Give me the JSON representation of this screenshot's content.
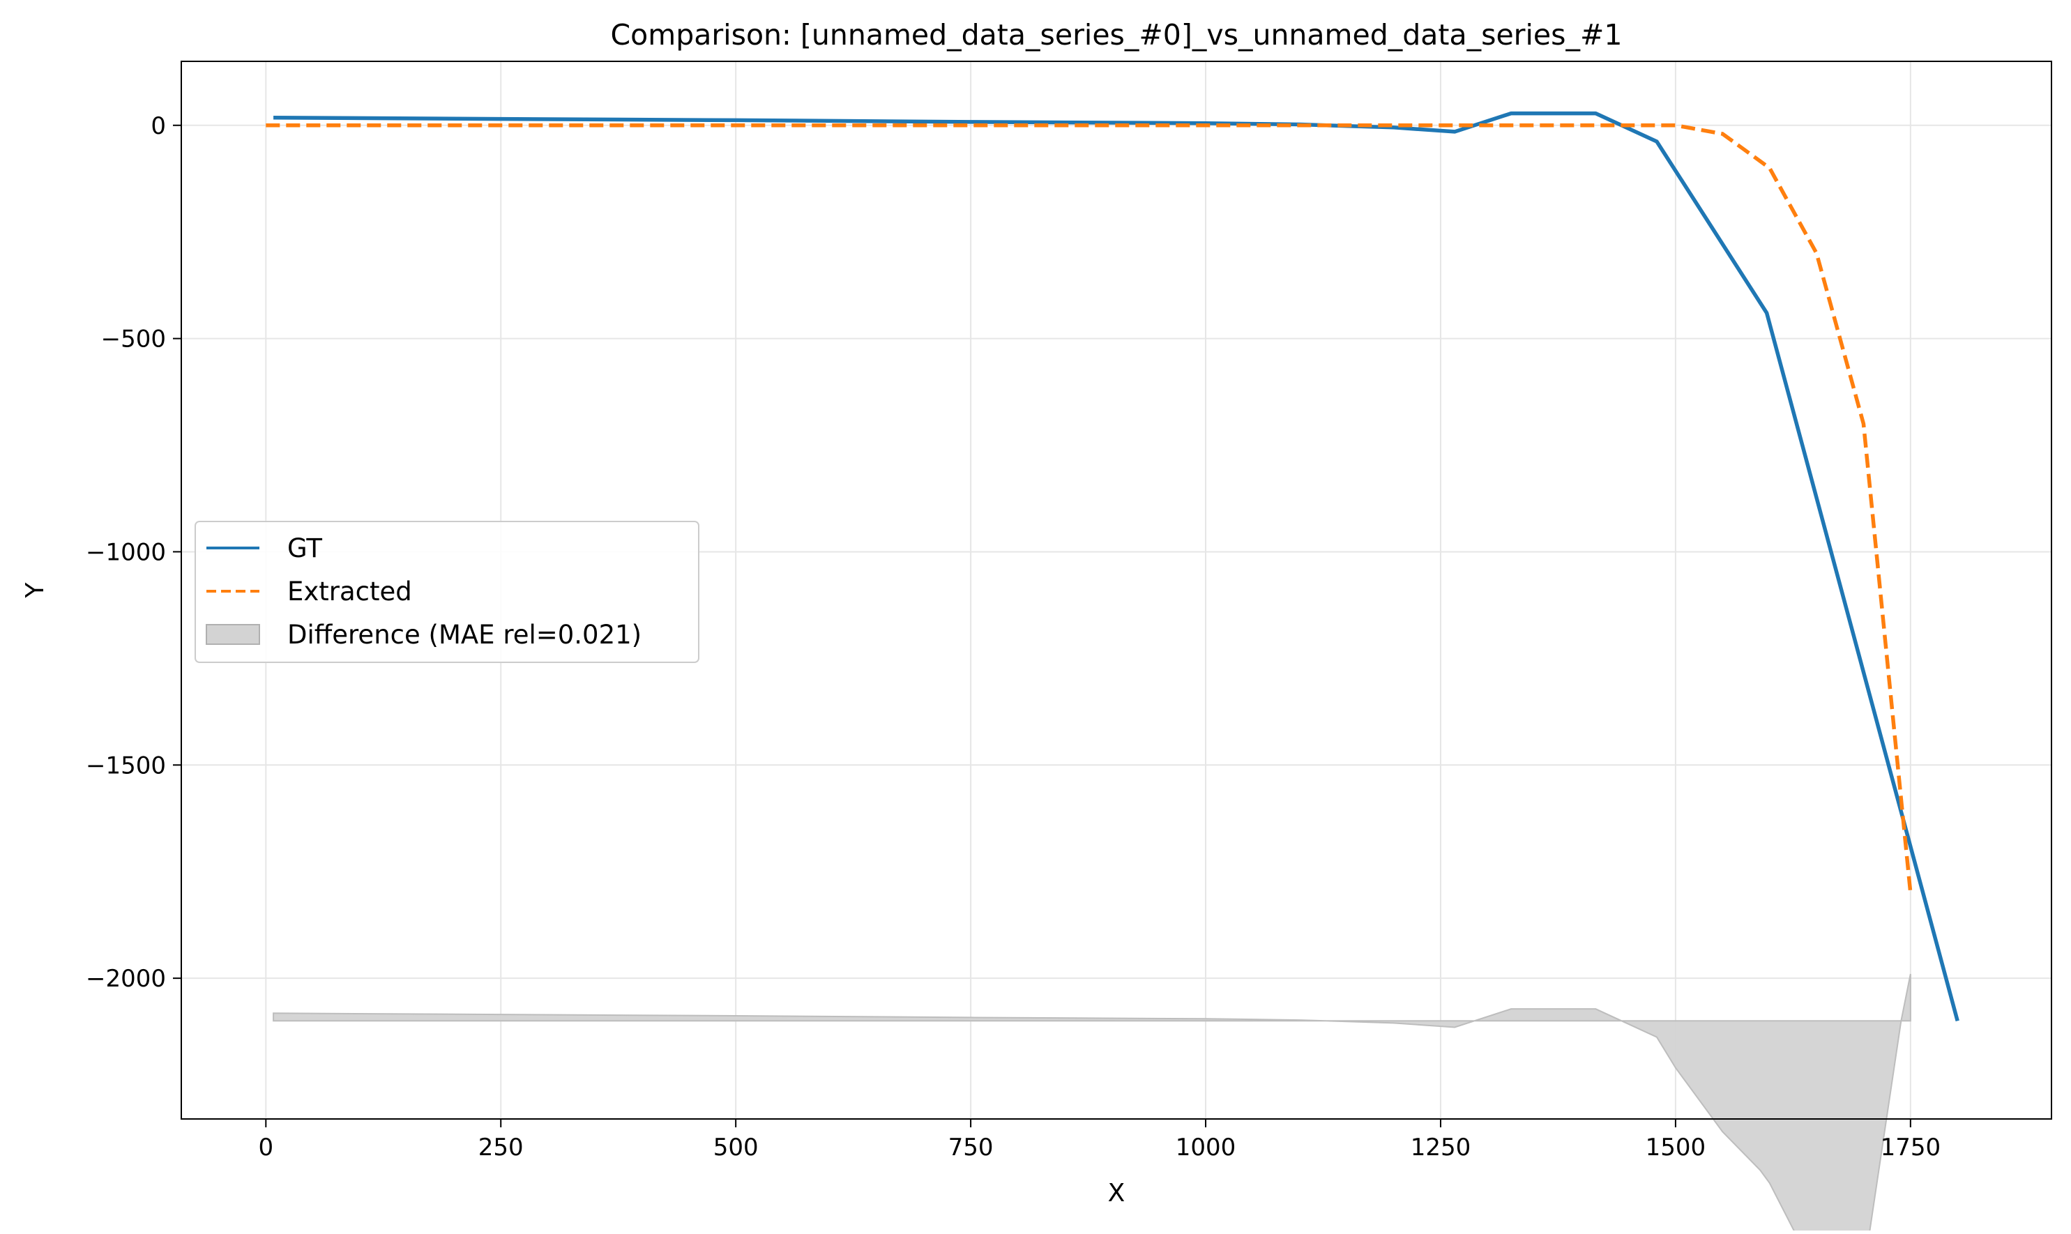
{
  "chart_data": {
    "type": "line",
    "title": "Comparison: [unnamed_data_series_#0]_vs_unnamed_data_series_#1",
    "xlabel": "X",
    "ylabel": "Y",
    "xlim": [
      -90,
      1900
    ],
    "ylim": [
      -2330,
      150
    ],
    "grid": true,
    "legend_position": "center-left",
    "x_ticks": [
      0,
      250,
      500,
      750,
      1000,
      1250,
      1500,
      1750
    ],
    "x_tick_labels": [
      "0",
      "250",
      "500",
      "750",
      "1000",
      "1250",
      "1500",
      "1750"
    ],
    "y_ticks": [
      0,
      -500,
      -1000,
      -1500,
      -2000
    ],
    "y_tick_labels": [
      "0",
      "−500",
      "−1000",
      "−1500",
      "−2000"
    ],
    "series": [
      {
        "name": "GT",
        "color": "#1f77b4",
        "style": "solid",
        "x": [
          8,
          250,
          500,
          750,
          1000,
          1100,
          1200,
          1265,
          1325,
          1415,
          1480,
          1597,
          1800
        ],
        "y": [
          18,
          15,
          12,
          8,
          5,
          2,
          -5,
          -15,
          28,
          28,
          -38,
          -440,
          -2100
        ]
      },
      {
        "name": "Extracted",
        "color": "#ff7f0e",
        "style": "dashed",
        "x": [
          0,
          250,
          500,
          750,
          1000,
          1250,
          1400,
          1500,
          1550,
          1600,
          1650,
          1700,
          1750
        ],
        "y": [
          0,
          0,
          0,
          0,
          0,
          0,
          0,
          0,
          -20,
          -100,
          -300,
          -700,
          -1800
        ]
      }
    ],
    "difference": {
      "name": "Difference (MAE rel=0.021)",
      "color": "#d3d3d3",
      "baseline": -2100,
      "x": [
        8,
        250,
        500,
        750,
        1000,
        1100,
        1200,
        1265,
        1325,
        1415,
        1480,
        1500,
        1550,
        1590,
        1600,
        1650,
        1700,
        1740,
        1750
      ],
      "diff": [
        18,
        15,
        12,
        8,
        5,
        2,
        -5,
        -15,
        28,
        28,
        -38,
        -110,
        -260,
        -350,
        -380,
        -595,
        -590,
        0,
        110
      ]
    }
  },
  "legend": {
    "items": [
      {
        "label": "GT"
      },
      {
        "label": "Extracted"
      },
      {
        "label": "Difference (MAE rel=0.021)"
      }
    ]
  }
}
